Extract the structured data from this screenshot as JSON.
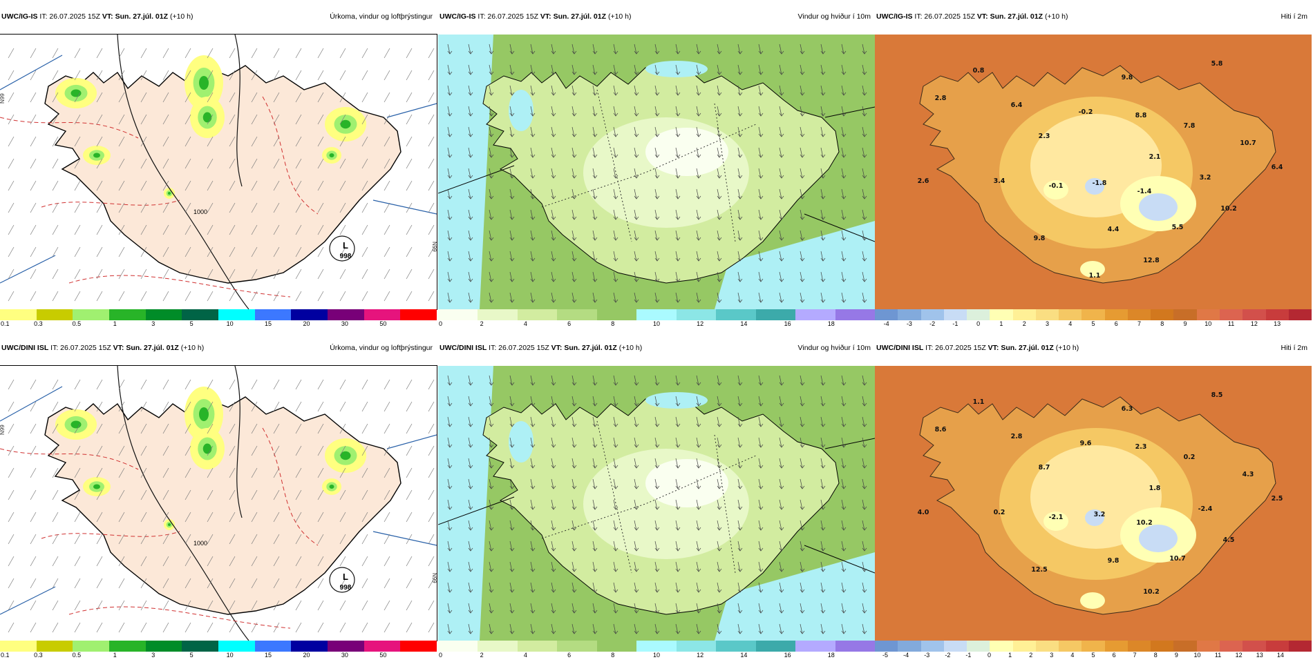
{
  "rows": [
    {
      "model": "UWC/IG-IS",
      "precip": {
        "model": "UWC/IG-IS",
        "it_label": "IT: 26.07.2025 15Z",
        "vt_label": "VT: Sun. 27.júl. 01Z",
        "lead": "(+10 h)",
        "title": "Úrkoma, vindur og loftþrýstingur",
        "map_labels": [
          "L",
          "998",
          "1000"
        ],
        "edge_labels": [
          "N99",
          "N99"
        ],
        "scale": [
          "0.1",
          "0.3",
          "0.5",
          "1",
          "3",
          "5",
          "10",
          "15",
          "20",
          "30",
          "50"
        ]
      },
      "wind": {
        "model": "UWC/IG-IS",
        "it_label": "IT: 26.07.2025 15Z",
        "vt_label": "VT: Sun. 27.júl. 01Z",
        "lead": "(+10 h)",
        "title": "Vindur og hviður í 10m",
        "scale": [
          "0",
          "2",
          "4",
          "6",
          "8",
          "10",
          "12",
          "14",
          "16",
          "18"
        ]
      },
      "temp": {
        "model": "UWC/IG-IS",
        "it_label": "IT: 26.07.2025 15Z",
        "vt_label": "VT: Sun. 27.júl. 01Z",
        "lead": "(+10 h)",
        "title": "Hiti í 2m",
        "values": [
          "0.8",
          "9.8",
          "5.8",
          "2.8",
          "6.4",
          "-0.2",
          "8.8",
          "7.8",
          "2.3",
          "10.7",
          "2.1",
          "6.4",
          "2.6",
          "3.4",
          "-0.1",
          "-1.8",
          "-1.4",
          "3.2",
          "10.2",
          "4.4",
          "5.5",
          "9.8",
          "12.8",
          "1.1"
        ],
        "scale": [
          "-4",
          "-3",
          "-2",
          "-1",
          "0",
          "1",
          "2",
          "3",
          "4",
          "5",
          "6",
          "7",
          "8",
          "9",
          "10",
          "11",
          "12",
          "13"
        ]
      }
    },
    {
      "model": "UWC/DINI ISL",
      "precip": {
        "model": "UWC/DINI ISL",
        "it_label": "IT: 26.07.2025 15Z",
        "vt_label": "VT: Sun. 27.júl. 01Z",
        "lead": "(+10 h)",
        "title": "Úrkoma, vindur og loftþrýstingur",
        "map_labels": [
          "L",
          "998",
          "1000"
        ],
        "edge_labels": [
          "N99",
          "N99"
        ],
        "scale": [
          "0.1",
          "0.3",
          "0.5",
          "1",
          "3",
          "5",
          "10",
          "15",
          "20",
          "30",
          "50"
        ]
      },
      "wind": {
        "model": "UWC/DINI ISL",
        "it_label": "IT: 26.07.2025 15Z",
        "vt_label": "VT: Sun. 27.júl. 01Z",
        "lead": "(+10 h)",
        "title": "Vindur og hviður í 10m",
        "scale": [
          "0",
          "2",
          "4",
          "6",
          "8",
          "10",
          "12",
          "14",
          "16",
          "18"
        ]
      },
      "temp": {
        "model": "UWC/DINI ISL",
        "it_label": "IT: 26.07.2025 15Z",
        "vt_label": "VT: Sun. 27.júl. 01Z",
        "lead": "(+10 h)",
        "title": "Hiti í 2m",
        "values": [
          "1.1",
          "6.3",
          "8.5",
          "8.6",
          "2.8",
          "9.6",
          "2.3",
          "0.2",
          "8.7",
          "4.3",
          "1.8",
          "2.5",
          "4.0",
          "0.2",
          "-2.1",
          "3.2",
          "10.2",
          "-2.4",
          "4.5",
          "9.8",
          "10.7",
          "12.5",
          "10.2"
        ],
        "scale": [
          "-5",
          "-4",
          "-3",
          "-2",
          "-1",
          "0",
          "1",
          "2",
          "3",
          "4",
          "5",
          "6",
          "7",
          "8",
          "9",
          "10",
          "11",
          "12",
          "13",
          "14"
        ]
      }
    }
  ],
  "colors": {
    "precip_scale": [
      "#ffff80",
      "#c8cc00",
      "#a0f070",
      "#28b428",
      "#008c28",
      "#006446",
      "#00ffff",
      "#3c78ff",
      "#0000a0",
      "#780078",
      "#e6147d",
      "#ff0000"
    ],
    "wind_scale": [
      "#fafff0",
      "#e8f8c8",
      "#d2eca0",
      "#b4dc82",
      "#96c864",
      "#aafaff",
      "#8ce6e6",
      "#5ac8c8",
      "#3caaaa",
      "#b4aaff",
      "#9678e6"
    ],
    "temp_scale": [
      "#6e96d2",
      "#82aadc",
      "#a0c3eb",
      "#c8dcf5",
      "#dcf0dc",
      "#ffffb4",
      "#fff096",
      "#fade82",
      "#f5c864",
      "#f0b44b",
      "#e69b32",
      "#dc8728",
      "#d2781e",
      "#c86e28",
      "#e07846",
      "#dc6450",
      "#d2504b",
      "#c83c3c",
      "#b42832"
    ],
    "land_precip": "#fce8d8",
    "sea_wind": "#aef0f5",
    "sea_temp": "#e07a55"
  }
}
